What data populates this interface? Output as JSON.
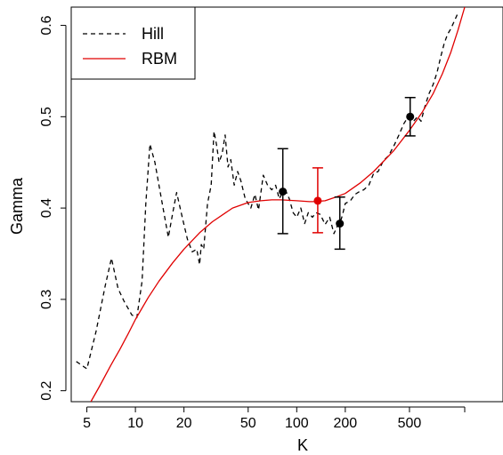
{
  "chart_data": {
    "type": "line",
    "xlabel": "K",
    "ylabel": "Gamma",
    "x_scale": "log",
    "xlim": [
      4,
      1900
    ],
    "ylim": [
      0.188,
      0.62
    ],
    "x_ticks": [
      5,
      10,
      20,
      50,
      100,
      200,
      500
    ],
    "x_tick_labels": [
      "5",
      "10",
      "20",
      "50",
      "100",
      "200",
      "500"
    ],
    "y_ticks": [
      0.2,
      0.3,
      0.4,
      0.5,
      0.6
    ],
    "y_tick_labels": [
      "0.2",
      "0.3",
      "0.4",
      "0.5",
      "0.6"
    ],
    "legend": {
      "position": "top-left",
      "entries": [
        {
          "label": "Hill",
          "color": "#000000",
          "style": "dashed"
        },
        {
          "label": "RBM",
          "color": "#e00000",
          "style": "solid"
        }
      ]
    },
    "series": [
      {
        "name": "Hill",
        "color": "#000000",
        "dash": "dashed",
        "x": [
          4.3,
          5,
          5.7,
          6.5,
          7.1,
          7.8,
          8.5,
          9.5,
          10.2,
          11,
          11.6,
          12.3,
          13.2,
          14.5,
          16,
          17,
          18,
          19.5,
          21,
          22.5,
          24,
          25,
          25.6,
          26.5,
          28,
          29.5,
          30.7,
          31.8,
          33,
          34.5,
          36,
          37.5,
          39,
          41,
          43,
          45,
          48,
          52,
          55,
          58,
          62,
          66,
          70,
          74,
          78,
          82,
          86,
          90,
          95,
          100,
          106,
          112,
          118,
          125,
          132,
          140,
          150,
          160,
          170,
          178,
          185,
          192,
          200,
          215,
          230,
          245,
          260,
          280,
          300,
          320,
          345,
          370,
          400,
          430,
          460,
          490,
          510,
          530,
          560,
          590,
          620,
          660,
          700,
          740,
          780,
          820,
          860,
          900,
          950,
          990
        ],
        "y": [
          0.232,
          0.224,
          0.265,
          0.315,
          0.345,
          0.312,
          0.298,
          0.283,
          0.28,
          0.32,
          0.405,
          0.47,
          0.45,
          0.41,
          0.368,
          0.394,
          0.417,
          0.39,
          0.366,
          0.352,
          0.355,
          0.338,
          0.36,
          0.355,
          0.405,
          0.425,
          0.484,
          0.47,
          0.45,
          0.46,
          0.48,
          0.445,
          0.453,
          0.425,
          0.44,
          0.43,
          0.41,
          0.4,
          0.415,
          0.398,
          0.436,
          0.425,
          0.42,
          0.425,
          0.41,
          0.418,
          0.418,
          0.41,
          0.395,
          0.39,
          0.4,
          0.383,
          0.395,
          0.39,
          0.395,
          0.393,
          0.382,
          0.39,
          0.372,
          0.38,
          0.383,
          0.392,
          0.405,
          0.408,
          0.415,
          0.418,
          0.42,
          0.425,
          0.438,
          0.44,
          0.452,
          0.457,
          0.468,
          0.48,
          0.492,
          0.5,
          0.505,
          0.495,
          0.5,
          0.495,
          0.51,
          0.525,
          0.535,
          0.548,
          0.565,
          0.58,
          0.59,
          0.596,
          0.605,
          0.612
        ]
      },
      {
        "name": "RBM",
        "color": "#e00000",
        "dash": "solid",
        "x": [
          5.3,
          6,
          7,
          8,
          9,
          10,
          12,
          14,
          17,
          20,
          25,
          30,
          40,
          50,
          60,
          70,
          80,
          100,
          120,
          130,
          150,
          175,
          200,
          250,
          300,
          400,
          500,
          600,
          700,
          800,
          900,
          1000,
          1100
        ],
        "y": [
          0.188,
          0.205,
          0.227,
          0.245,
          0.262,
          0.278,
          0.302,
          0.32,
          0.34,
          0.355,
          0.373,
          0.385,
          0.4,
          0.406,
          0.408,
          0.409,
          0.409,
          0.408,
          0.407,
          0.407,
          0.408,
          0.412,
          0.416,
          0.428,
          0.44,
          0.463,
          0.485,
          0.505,
          0.525,
          0.547,
          0.57,
          0.595,
          0.62
        ]
      }
    ],
    "error_bars": [
      {
        "x": 82,
        "y": 0.418,
        "low": 0.372,
        "high": 0.465,
        "color": "#000000"
      },
      {
        "x": 135,
        "y": 0.408,
        "low": 0.373,
        "high": 0.444,
        "color": "#e00000"
      },
      {
        "x": 185,
        "y": 0.383,
        "low": 0.355,
        "high": 0.412,
        "color": "#000000"
      },
      {
        "x": 505,
        "y": 0.5,
        "low": 0.479,
        "high": 0.521,
        "color": "#000000"
      }
    ]
  }
}
